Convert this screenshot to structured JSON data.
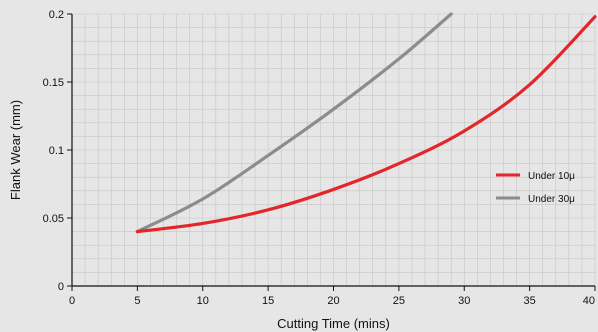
{
  "chart_data": {
    "type": "line",
    "title": "",
    "xlabel": "Cutting Time (mins)",
    "ylabel": "Flank Wear (mm)",
    "xlim": [
      0,
      40
    ],
    "ylim": [
      0,
      0.2
    ],
    "xticks": [
      0,
      5,
      10,
      15,
      20,
      25,
      30,
      35,
      40
    ],
    "yticks": [
      0,
      0.05,
      0.1,
      0.15,
      0.2
    ],
    "xtick_labels": [
      "0",
      "5",
      "10",
      "15",
      "20",
      "25",
      "30",
      "35",
      "40"
    ],
    "ytick_labels": [
      "0",
      "0.05",
      "0.1",
      "0.15",
      "0.2"
    ],
    "grid": true,
    "legend_position": "right",
    "series": [
      {
        "name": "Under 10μ",
        "color": "#e3262b",
        "x": [
          5,
          10,
          15,
          20,
          25,
          30,
          35,
          40
        ],
        "y": [
          0.04,
          0.046,
          0.056,
          0.071,
          0.09,
          0.114,
          0.148,
          0.198
        ]
      },
      {
        "name": "Under 30μ",
        "color": "#8c8c8c",
        "x": [
          5,
          10,
          15,
          20,
          25,
          29
        ],
        "y": [
          0.04,
          0.064,
          0.096,
          0.13,
          0.167,
          0.2
        ]
      }
    ]
  }
}
